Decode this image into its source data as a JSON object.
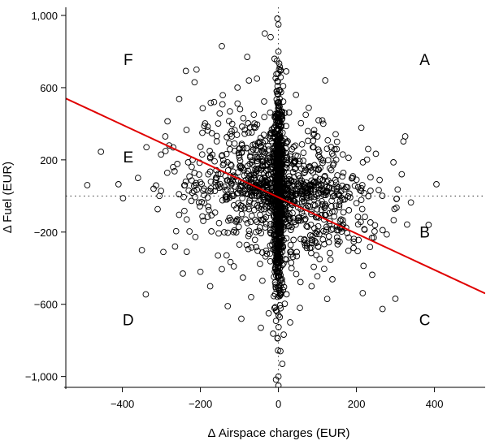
{
  "chart_data": {
    "type": "scatter",
    "title": "",
    "xlabel": "Δ Airspace charges (EUR)",
    "ylabel": "Δ Fuel (EUR)",
    "xlim": [
      -545,
      530
    ],
    "ylim": [
      -1060,
      1045
    ],
    "x_ticks": [
      -400,
      -200,
      0,
      200,
      400
    ],
    "x_tick_labels": [
      "−400",
      "−200",
      "0",
      "200",
      "400"
    ],
    "y_ticks": [
      -1000,
      -600,
      -200,
      200,
      600,
      1000
    ],
    "y_tick_labels": [
      "−1,000",
      "−600",
      "−200",
      "200",
      "600",
      "1,000"
    ],
    "grid": false,
    "reference_lines": {
      "x": 0,
      "y": 0,
      "style": "dotted"
    },
    "regression_line": {
      "color": "#e00000",
      "points": [
        {
          "x": -545,
          "y": 540
        },
        {
          "x": 530,
          "y": -540
        }
      ]
    },
    "marker": {
      "shape": "open-circle",
      "color": "#000000"
    },
    "quadrant_labels": [
      {
        "text": "A",
        "x": 375,
        "y": 725
      },
      {
        "text": "B",
        "x": 375,
        "y": -230
      },
      {
        "text": "C",
        "x": 375,
        "y": -715
      },
      {
        "text": "D",
        "x": -385,
        "y": -715
      },
      {
        "text": "E",
        "x": -385,
        "y": 185
      },
      {
        "text": "F",
        "x": -385,
        "y": 725
      }
    ],
    "points_highlights": [
      {
        "x": -490,
        "y": 60
      },
      {
        "x": -455,
        "y": 245
      },
      {
        "x": -410,
        "y": 65
      },
      {
        "x": -360,
        "y": 100
      },
      {
        "x": -350,
        "y": -300
      },
      {
        "x": -340,
        "y": -545
      },
      {
        "x": -320,
        "y": 40
      },
      {
        "x": -305,
        "y": 0
      },
      {
        "x": -295,
        "y": -310
      },
      {
        "x": -290,
        "y": 330
      },
      {
        "x": -280,
        "y": 280
      },
      {
        "x": -270,
        "y": 160
      },
      {
        "x": -265,
        "y": -280
      },
      {
        "x": -255,
        "y": 10
      },
      {
        "x": -245,
        "y": -430
      },
      {
        "x": -240,
        "y": 60
      },
      {
        "x": -235,
        "y": -130
      },
      {
        "x": -230,
        "y": 30
      },
      {
        "x": -220,
        "y": 200
      },
      {
        "x": -215,
        "y": 630
      },
      {
        "x": -210,
        "y": 700
      },
      {
        "x": -200,
        "y": -420
      },
      {
        "x": -195,
        "y": 350
      },
      {
        "x": -190,
        "y": -40
      },
      {
        "x": -180,
        "y": 120
      },
      {
        "x": -175,
        "y": -500
      },
      {
        "x": -165,
        "y": 520
      },
      {
        "x": -155,
        "y": -330
      },
      {
        "x": -145,
        "y": 830
      },
      {
        "x": -140,
        "y": 180
      },
      {
        "x": -130,
        "y": -610
      },
      {
        "x": -120,
        "y": 330
      },
      {
        "x": -115,
        "y": -200
      },
      {
        "x": -105,
        "y": 600
      },
      {
        "x": -95,
        "y": -680
      },
      {
        "x": -90,
        "y": 430
      },
      {
        "x": -80,
        "y": 770
      },
      {
        "x": -70,
        "y": -560
      },
      {
        "x": -55,
        "y": 650
      },
      {
        "x": -45,
        "y": -730
      },
      {
        "x": -35,
        "y": 900
      },
      {
        "x": -25,
        "y": -650
      },
      {
        "x": -20,
        "y": 880
      },
      {
        "x": -10,
        "y": 760
      },
      {
        "x": 0,
        "y": 950
      },
      {
        "x": 0,
        "y": 800
      },
      {
        "x": 0,
        "y": -1000
      },
      {
        "x": 0,
        "y": -1050
      },
      {
        "x": 5,
        "y": -860
      },
      {
        "x": 10,
        "y": -930
      },
      {
        "x": 20,
        "y": 690
      },
      {
        "x": 30,
        "y": -700
      },
      {
        "x": 45,
        "y": 560
      },
      {
        "x": 55,
        "y": -620
      },
      {
        "x": 70,
        "y": 450
      },
      {
        "x": 85,
        "y": -500
      },
      {
        "x": 100,
        "y": 330
      },
      {
        "x": 115,
        "y": 400
      },
      {
        "x": 120,
        "y": 640
      },
      {
        "x": 125,
        "y": -570
      },
      {
        "x": 140,
        "y": 170
      },
      {
        "x": 150,
        "y": -190
      },
      {
        "x": 165,
        "y": 230
      },
      {
        "x": 180,
        "y": -230
      },
      {
        "x": 190,
        "y": 100
      },
      {
        "x": 200,
        "y": -40
      },
      {
        "x": 215,
        "y": 60
      },
      {
        "x": 230,
        "y": 260
      },
      {
        "x": 325,
        "y": 330
      },
      {
        "x": 385,
        "y": -160
      },
      {
        "x": 405,
        "y": 65
      }
    ],
    "point_cloud_summary": {
      "approx_count": 3000,
      "vertical_band_x": 0,
      "note": ""
    }
  }
}
